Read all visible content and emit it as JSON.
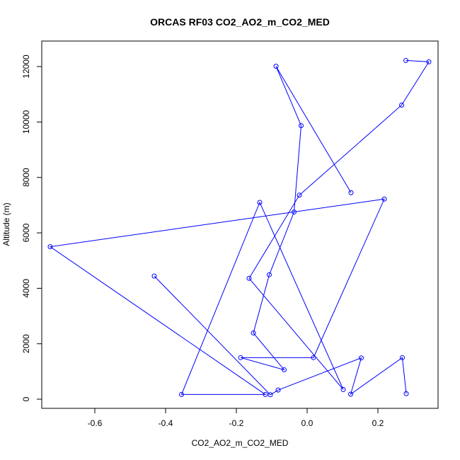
{
  "chart_data": {
    "type": "line",
    "title": "ORCAS RF03 CO2_AO2_m_CO2_MED",
    "xlabel": "CO2_AO2_m_CO2_MED",
    "ylabel": "Altitude (m)",
    "xlim": [
      -0.75,
      0.37
    ],
    "ylim": [
      -330,
      12920
    ],
    "x_ticks": [
      -0.6,
      -0.4,
      -0.2,
      0.0,
      0.2
    ],
    "x_tick_labels": [
      "-0.6",
      "-0.4",
      "-0.2",
      "0.0",
      "0.2"
    ],
    "y_ticks": [
      0,
      2000,
      4000,
      6000,
      8000,
      10000,
      12000
    ],
    "y_tick_labels": [
      "0",
      "2000",
      "4000",
      "6000",
      "8000",
      "10000",
      "12000"
    ],
    "color": "#0000ff",
    "series": [
      {
        "points": [
          {
            "x": 0.124,
            "y": 7450
          },
          {
            "x": -0.088,
            "y": 12010
          },
          {
            "x": -0.017,
            "y": 9870
          },
          {
            "x": -0.037,
            "y": 6750
          },
          {
            "x": -0.107,
            "y": 4490
          },
          {
            "x": -0.152,
            "y": 2390
          },
          {
            "x": -0.065,
            "y": 1060
          },
          {
            "x": -0.188,
            "y": 1500
          },
          {
            "x": 0.018,
            "y": 1500
          },
          {
            "x": 0.218,
            "y": 7220
          },
          {
            "x": -0.726,
            "y": 5500
          },
          {
            "x": -0.118,
            "y": 170
          },
          {
            "x": -0.355,
            "y": 170
          },
          {
            "x": -0.134,
            "y": 7100
          },
          {
            "x": 0.102,
            "y": 350
          },
          {
            "x": -0.164,
            "y": 4360
          },
          {
            "x": -0.022,
            "y": 7360
          },
          {
            "x": 0.267,
            "y": 10610
          },
          {
            "x": 0.344,
            "y": 12170
          },
          {
            "x": 0.279,
            "y": 12220
          }
        ]
      },
      {
        "points": [
          {
            "x": -0.432,
            "y": 4440
          },
          {
            "x": -0.104,
            "y": 160
          },
          {
            "x": -0.082,
            "y": 330
          },
          {
            "x": 0.153,
            "y": 1490
          },
          {
            "x": 0.123,
            "y": 180
          },
          {
            "x": 0.269,
            "y": 1500
          },
          {
            "x": 0.28,
            "y": 200
          }
        ]
      }
    ]
  }
}
